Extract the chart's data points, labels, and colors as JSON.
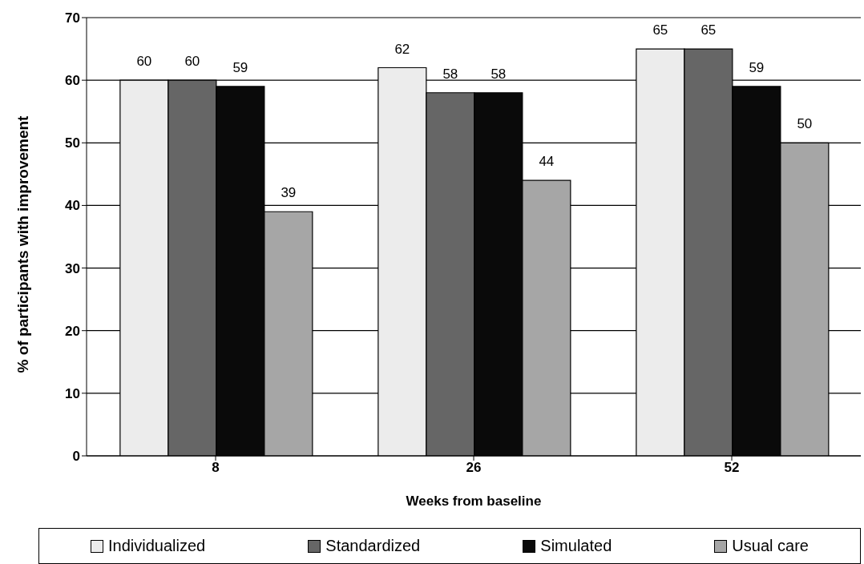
{
  "chart_data": {
    "type": "bar",
    "xlabel": "Weeks from baseline",
    "ylabel": "% of participants with improvement",
    "categories": [
      "8",
      "26",
      "52"
    ],
    "series": [
      {
        "name": "Individualized",
        "color": "#ececec",
        "values": [
          60,
          62,
          65
        ]
      },
      {
        "name": "Standardized",
        "color": "#666666",
        "values": [
          60,
          58,
          65
        ]
      },
      {
        "name": "Simulated",
        "color": "#0a0a0a",
        "values": [
          59,
          58,
          59
        ]
      },
      {
        "name": "Usual care",
        "color": "#a6a6a6",
        "values": [
          39,
          44,
          50
        ]
      }
    ],
    "ylim": [
      0,
      70
    ],
    "yticks": [
      0,
      10,
      20,
      30,
      40,
      50,
      60,
      70
    ],
    "grid": "y",
    "legend": "bottom",
    "data_labels": true
  }
}
